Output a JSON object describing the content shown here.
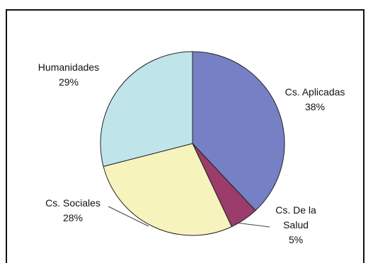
{
  "chart_data": {
    "type": "pie",
    "title": "",
    "legend": "none",
    "slices": [
      {
        "label_lines": [
          "Cs. Aplicadas"
        ],
        "pct_text": "38%",
        "value": 38,
        "color": "#7581c4"
      },
      {
        "label_lines": [
          "Cs. De la",
          "Salud"
        ],
        "pct_text": "5%",
        "value": 5,
        "color": "#9b3c6a"
      },
      {
        "label_lines": [
          "Cs. Sociales"
        ],
        "pct_text": "28%",
        "value": 28,
        "color": "#f7f3bd"
      },
      {
        "label_lines": [
          "Humanidades"
        ],
        "pct_text": "29%",
        "value": 29,
        "color": "#bfe5eb"
      }
    ]
  }
}
